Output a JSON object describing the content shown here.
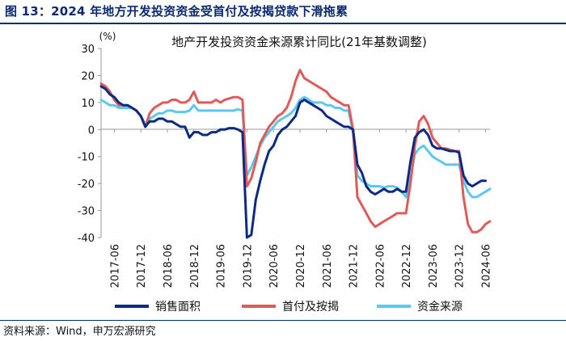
{
  "figure_title": "图 13：2024 年地方开发投资资金受首付及按揭贷款下滑拖累",
  "source_note": "资料来源：Wind，申万宏源研究",
  "colors": {
    "sales": "#0b2a84",
    "mortgage": "#e05a5a",
    "funds": "#5bc8f0",
    "title": "#0b2a6f"
  },
  "chart_data": {
    "type": "line",
    "title": "地产开发投资资金来源累计同比(21年基数调整)",
    "ylabel": "(%)",
    "ylim": [
      -40,
      30
    ],
    "yticks": [
      30,
      20,
      10,
      0,
      -10,
      -20,
      -30,
      -40
    ],
    "xlim": [
      "2017-03",
      "2024-07"
    ],
    "xticks": [
      "2017-06",
      "2017-12",
      "2018-06",
      "2018-12",
      "2019-06",
      "2019-12",
      "2020-06",
      "2020-12",
      "2021-06",
      "2021-12",
      "2022-06",
      "2022-12",
      "2023-06",
      "2023-12",
      "2024-06"
    ],
    "legend_position": "bottom",
    "series": [
      {
        "key": "sales",
        "name": "销售面积",
        "points": [
          [
            "2017-03",
            16
          ],
          [
            "2017-04",
            15
          ],
          [
            "2017-05",
            13
          ],
          [
            "2017-06",
            12
          ],
          [
            "2017-07",
            10
          ],
          [
            "2017-08",
            9
          ],
          [
            "2017-09",
            9
          ],
          [
            "2017-10",
            8
          ],
          [
            "2017-11",
            7
          ],
          [
            "2017-12",
            5
          ],
          [
            "2018-01",
            1
          ],
          [
            "2018-02",
            3
          ],
          [
            "2018-03",
            3
          ],
          [
            "2018-04",
            4
          ],
          [
            "2018-05",
            4
          ],
          [
            "2018-06",
            3
          ],
          [
            "2018-07",
            3
          ],
          [
            "2018-08",
            2
          ],
          [
            "2018-09",
            1
          ],
          [
            "2018-10",
            1
          ],
          [
            "2018-11",
            -3
          ],
          [
            "2018-12",
            -1
          ],
          [
            "2019-01",
            -1
          ],
          [
            "2019-02",
            -2
          ],
          [
            "2019-03",
            -2
          ],
          [
            "2019-04",
            -1
          ],
          [
            "2019-05",
            -1
          ],
          [
            "2019-06",
            0
          ],
          [
            "2019-07",
            0
          ],
          [
            "2019-08",
            0.5
          ],
          [
            "2019-09",
            0.5
          ],
          [
            "2019-10",
            0
          ],
          [
            "2019-11",
            -1
          ],
          [
            "2019-12",
            -40
          ],
          [
            "2020-01",
            -39
          ],
          [
            "2020-02",
            -26
          ],
          [
            "2020-03",
            -19
          ],
          [
            "2020-04",
            -13
          ],
          [
            "2020-05",
            -8
          ],
          [
            "2020-06",
            -6
          ],
          [
            "2020-07",
            -2
          ],
          [
            "2020-08",
            0
          ],
          [
            "2020-09",
            1
          ],
          [
            "2020-10",
            3
          ],
          [
            "2020-11",
            5
          ],
          [
            "2020-12",
            10
          ],
          [
            "2021-01",
            11
          ],
          [
            "2021-02",
            10
          ],
          [
            "2021-03",
            9
          ],
          [
            "2021-04",
            8
          ],
          [
            "2021-05",
            7
          ],
          [
            "2021-06",
            5
          ],
          [
            "2021-07",
            4
          ],
          [
            "2021-08",
            3
          ],
          [
            "2021-09",
            2
          ],
          [
            "2021-10",
            1
          ],
          [
            "2021-11",
            1
          ],
          [
            "2021-12",
            0
          ],
          [
            "2022-01",
            -13
          ],
          [
            "2022-02",
            -16
          ],
          [
            "2022-03",
            -21
          ],
          [
            "2022-04",
            -23
          ],
          [
            "2022-05",
            -24
          ],
          [
            "2022-06",
            -23
          ],
          [
            "2022-07",
            -22
          ],
          [
            "2022-08",
            -23
          ],
          [
            "2022-09",
            -23
          ],
          [
            "2022-10",
            -22
          ],
          [
            "2022-11",
            -23
          ],
          [
            "2022-12",
            -23
          ],
          [
            "2023-01",
            -12
          ],
          [
            "2023-02",
            -3
          ],
          [
            "2023-03",
            -1
          ],
          [
            "2023-04",
            0
          ],
          [
            "2023-05",
            -2
          ],
          [
            "2023-06",
            -6
          ],
          [
            "2023-07",
            -7
          ],
          [
            "2023-08",
            -7
          ],
          [
            "2023-09",
            -7.5
          ],
          [
            "2023-10",
            -8
          ],
          [
            "2023-11",
            -8
          ],
          [
            "2023-12",
            -8.5
          ],
          [
            "2024-01",
            -17
          ],
          [
            "2024-02",
            -20
          ],
          [
            "2024-03",
            -21
          ],
          [
            "2024-04",
            -20
          ],
          [
            "2024-05",
            -19
          ],
          [
            "2024-06",
            -19
          ]
        ]
      },
      {
        "key": "mortgage",
        "name": "首付及按揭",
        "points": [
          [
            "2017-03",
            17
          ],
          [
            "2017-04",
            16
          ],
          [
            "2017-05",
            14
          ],
          [
            "2017-06",
            11
          ],
          [
            "2017-07",
            9
          ],
          [
            "2017-08",
            9
          ],
          [
            "2017-09",
            9
          ],
          [
            "2017-10",
            8
          ],
          [
            "2017-11",
            7
          ],
          [
            "2017-12",
            5
          ],
          [
            "2018-01",
            1
          ],
          [
            "2018-02",
            6
          ],
          [
            "2018-03",
            8
          ],
          [
            "2018-04",
            9
          ],
          [
            "2018-05",
            10
          ],
          [
            "2018-06",
            10
          ],
          [
            "2018-07",
            11
          ],
          [
            "2018-08",
            11
          ],
          [
            "2018-09",
            10
          ],
          [
            "2018-10",
            10
          ],
          [
            "2018-11",
            11
          ],
          [
            "2018-12",
            14
          ],
          [
            "2019-01",
            10
          ],
          [
            "2019-02",
            10
          ],
          [
            "2019-03",
            10
          ],
          [
            "2019-04",
            10
          ],
          [
            "2019-05",
            11
          ],
          [
            "2019-06",
            10
          ],
          [
            "2019-07",
            11
          ],
          [
            "2019-08",
            11.5
          ],
          [
            "2019-09",
            12
          ],
          [
            "2019-10",
            12
          ],
          [
            "2019-11",
            11
          ],
          [
            "2019-12",
            -21
          ],
          [
            "2020-01",
            -18
          ],
          [
            "2020-02",
            -12
          ],
          [
            "2020-03",
            -5
          ],
          [
            "2020-04",
            -2
          ],
          [
            "2020-05",
            1
          ],
          [
            "2020-06",
            3
          ],
          [
            "2020-07",
            5
          ],
          [
            "2020-08",
            6
          ],
          [
            "2020-09",
            8
          ],
          [
            "2020-10",
            12
          ],
          [
            "2020-11",
            18
          ],
          [
            "2020-12",
            22
          ],
          [
            "2021-01",
            19
          ],
          [
            "2021-02",
            18
          ],
          [
            "2021-03",
            17
          ],
          [
            "2021-04",
            16
          ],
          [
            "2021-05",
            15
          ],
          [
            "2021-06",
            14
          ],
          [
            "2021-07",
            12
          ],
          [
            "2021-08",
            11
          ],
          [
            "2021-09",
            10
          ],
          [
            "2021-10",
            9
          ],
          [
            "2021-11",
            9
          ],
          [
            "2021-12",
            0
          ],
          [
            "2022-01",
            -25
          ],
          [
            "2022-02",
            -28
          ],
          [
            "2022-03",
            -31
          ],
          [
            "2022-04",
            -34
          ],
          [
            "2022-05",
            -36
          ],
          [
            "2022-06",
            -35
          ],
          [
            "2022-07",
            -34
          ],
          [
            "2022-08",
            -33
          ],
          [
            "2022-09",
            -32
          ],
          [
            "2022-10",
            -31
          ],
          [
            "2022-11",
            -31
          ],
          [
            "2022-12",
            -31
          ],
          [
            "2023-01",
            -20
          ],
          [
            "2023-02",
            -6
          ],
          [
            "2023-03",
            3
          ],
          [
            "2023-04",
            5
          ],
          [
            "2023-05",
            2
          ],
          [
            "2023-06",
            -3
          ],
          [
            "2023-07",
            -5
          ],
          [
            "2023-08",
            -7
          ],
          [
            "2023-09",
            -7
          ],
          [
            "2023-10",
            -7.5
          ],
          [
            "2023-11",
            -8
          ],
          [
            "2023-12",
            -8
          ],
          [
            "2024-01",
            -25
          ],
          [
            "2024-02",
            -35
          ],
          [
            "2024-03",
            -38
          ],
          [
            "2024-04",
            -38
          ],
          [
            "2024-05",
            -37
          ],
          [
            "2024-06",
            -35
          ],
          [
            "2024-07",
            -34
          ]
        ]
      },
      {
        "key": "funds",
        "name": "资金来源",
        "points": [
          [
            "2017-03",
            11
          ],
          [
            "2017-04",
            10
          ],
          [
            "2017-05",
            9
          ],
          [
            "2017-06",
            9
          ],
          [
            "2017-07",
            8
          ],
          [
            "2017-08",
            8
          ],
          [
            "2017-09",
            8
          ],
          [
            "2017-10",
            8
          ],
          [
            "2017-11",
            7
          ],
          [
            "2017-12",
            5
          ],
          [
            "2018-01",
            2
          ],
          [
            "2018-02",
            4
          ],
          [
            "2018-03",
            5
          ],
          [
            "2018-04",
            6
          ],
          [
            "2018-05",
            6
          ],
          [
            "2018-06",
            7
          ],
          [
            "2018-07",
            7
          ],
          [
            "2018-08",
            6.5
          ],
          [
            "2018-09",
            6.5
          ],
          [
            "2018-10",
            6.5
          ],
          [
            "2018-11",
            7
          ],
          [
            "2018-12",
            9
          ],
          [
            "2019-01",
            7
          ],
          [
            "2019-02",
            7
          ],
          [
            "2019-03",
            7
          ],
          [
            "2019-04",
            7
          ],
          [
            "2019-05",
            7
          ],
          [
            "2019-06",
            7
          ],
          [
            "2019-07",
            7
          ],
          [
            "2019-08",
            7
          ],
          [
            "2019-09",
            7
          ],
          [
            "2019-10",
            7.5
          ],
          [
            "2019-11",
            7
          ],
          [
            "2019-12",
            -17
          ],
          [
            "2020-01",
            -14
          ],
          [
            "2020-02",
            -10
          ],
          [
            "2020-03",
            -6
          ],
          [
            "2020-04",
            -3
          ],
          [
            "2020-05",
            -1
          ],
          [
            "2020-06",
            1
          ],
          [
            "2020-07",
            3
          ],
          [
            "2020-08",
            4
          ],
          [
            "2020-09",
            5
          ],
          [
            "2020-10",
            6
          ],
          [
            "2020-11",
            8
          ],
          [
            "2020-12",
            11
          ],
          [
            "2021-01",
            12
          ],
          [
            "2021-02",
            11
          ],
          [
            "2021-03",
            10
          ],
          [
            "2021-04",
            10
          ],
          [
            "2021-05",
            10
          ],
          [
            "2021-06",
            9
          ],
          [
            "2021-07",
            9
          ],
          [
            "2021-08",
            8
          ],
          [
            "2021-09",
            8
          ],
          [
            "2021-10",
            7
          ],
          [
            "2021-11",
            7
          ],
          [
            "2021-12",
            -1
          ],
          [
            "2022-01",
            -17
          ],
          [
            "2022-02",
            -19
          ],
          [
            "2022-03",
            -20
          ],
          [
            "2022-04",
            -21
          ],
          [
            "2022-05",
            -21
          ],
          [
            "2022-06",
            -21
          ],
          [
            "2022-07",
            -21.5
          ],
          [
            "2022-08",
            -21
          ],
          [
            "2022-09",
            -21
          ],
          [
            "2022-10",
            -21.5
          ],
          [
            "2022-11",
            -23
          ],
          [
            "2022-12",
            -25
          ],
          [
            "2023-01",
            -18
          ],
          [
            "2023-02",
            -9
          ],
          [
            "2023-03",
            -7
          ],
          [
            "2023-04",
            -6
          ],
          [
            "2023-05",
            -8
          ],
          [
            "2023-06",
            -10
          ],
          [
            "2023-07",
            -11
          ],
          [
            "2023-08",
            -12
          ],
          [
            "2023-09",
            -13
          ],
          [
            "2023-10",
            -13
          ],
          [
            "2023-11",
            -13
          ],
          [
            "2023-12",
            -13
          ],
          [
            "2024-01",
            -19
          ],
          [
            "2024-02",
            -23
          ],
          [
            "2024-03",
            -25
          ],
          [
            "2024-04",
            -25
          ],
          [
            "2024-05",
            -24
          ],
          [
            "2024-06",
            -23
          ],
          [
            "2024-07",
            -22
          ]
        ]
      }
    ]
  }
}
